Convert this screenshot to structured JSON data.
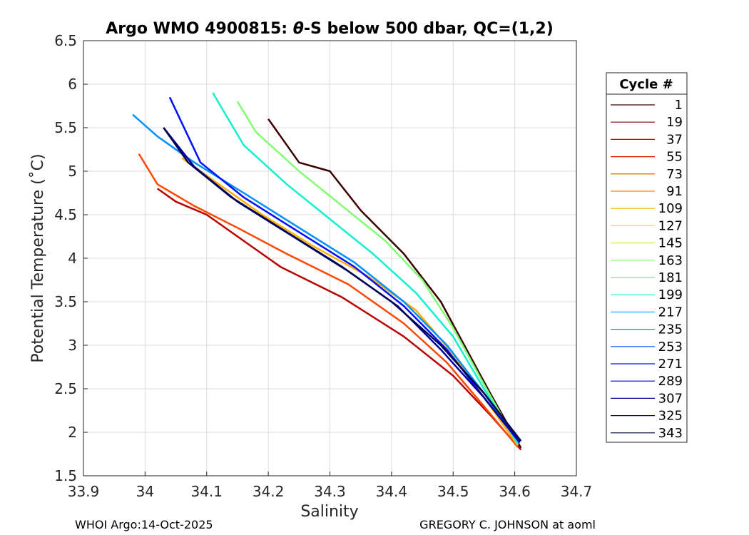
{
  "chart_data": {
    "type": "line",
    "title_prefix": "Argo WMO 4900815: ",
    "title_symbol": "θ",
    "title_suffix": "-S below 500 dbar,  QC=(1,2)",
    "xlabel": "Salinity",
    "ylabel": "Potential Temperature (˚C)",
    "xlim": [
      33.9,
      34.7
    ],
    "ylim": [
      1.5,
      6.5
    ],
    "xticks": [
      "33.9",
      "34",
      "34.1",
      "34.2",
      "34.3",
      "34.4",
      "34.5",
      "34.6",
      "34.7"
    ],
    "yticks": [
      "1.5",
      "2",
      "2.5",
      "3",
      "3.5",
      "4",
      "4.5",
      "5",
      "5.5",
      "6",
      "6.5"
    ],
    "grid": true,
    "legend": {
      "title": "Cycle #",
      "position": "right",
      "entries": [
        "1",
        "19",
        "37",
        "55",
        "73",
        "91",
        "109",
        "127",
        "145",
        "163",
        "181",
        "199",
        "217",
        "235",
        "253",
        "271",
        "289",
        "307",
        "325",
        "343"
      ],
      "colors": [
        "#3a0000",
        "#7a0000",
        "#b80000",
        "#e81000",
        "#ff4800",
        "#ff8000",
        "#ffb000",
        "#ffe800",
        "#c8ff30",
        "#80ff70",
        "#40ffa0",
        "#10f0d0",
        "#00c8ff",
        "#0090ff",
        "#0050ff",
        "#0010ff",
        "#0000d8",
        "#0000a0",
        "#000070",
        "#000050"
      ]
    },
    "series": [
      {
        "name": "1",
        "color": "#3a0000",
        "x": [
          34.61,
          34.56,
          34.48,
          34.42,
          34.35,
          34.3,
          34.25,
          34.22,
          34.2
        ],
        "y": [
          1.82,
          2.45,
          3.5,
          4.05,
          4.55,
          5.0,
          5.1,
          5.4,
          5.6
        ]
      },
      {
        "name": "37",
        "color": "#b80000",
        "x": [
          34.61,
          34.56,
          34.5,
          34.42,
          34.32,
          34.22,
          34.16,
          34.1,
          34.05,
          34.02
        ],
        "y": [
          1.8,
          2.2,
          2.65,
          3.1,
          3.55,
          3.9,
          4.2,
          4.5,
          4.65,
          4.8
        ]
      },
      {
        "name": "73",
        "color": "#ff4800",
        "x": [
          34.605,
          34.55,
          34.49,
          34.42,
          34.33,
          34.23,
          34.15,
          34.08,
          34.02,
          33.99
        ],
        "y": [
          1.83,
          2.3,
          2.8,
          3.25,
          3.7,
          4.05,
          4.35,
          4.6,
          4.85,
          5.2
        ]
      },
      {
        "name": "109",
        "color": "#ffb000",
        "x": [
          34.605,
          34.555,
          34.5,
          34.44,
          34.36,
          34.27,
          34.19,
          34.12,
          34.06
        ],
        "y": [
          1.85,
          2.35,
          2.9,
          3.4,
          3.8,
          4.15,
          4.5,
          4.85,
          5.15
        ]
      },
      {
        "name": "163",
        "color": "#80ff70",
        "x": [
          34.605,
          34.55,
          34.5,
          34.45,
          34.39,
          34.32,
          34.25,
          34.18,
          34.15
        ],
        "y": [
          1.86,
          2.55,
          3.2,
          3.75,
          4.2,
          4.6,
          5.0,
          5.45,
          5.8
        ]
      },
      {
        "name": "199",
        "color": "#10f0d0",
        "x": [
          34.605,
          34.55,
          34.5,
          34.44,
          34.37,
          34.3,
          34.23,
          34.16,
          34.11
        ],
        "y": [
          1.87,
          2.5,
          3.1,
          3.6,
          4.05,
          4.45,
          4.85,
          5.3,
          5.9
        ]
      },
      {
        "name": "235",
        "color": "#0090ff",
        "x": [
          34.608,
          34.55,
          34.49,
          34.42,
          34.34,
          34.25,
          34.16,
          34.08,
          34.02,
          33.98
        ],
        "y": [
          1.88,
          2.45,
          3.0,
          3.5,
          3.95,
          4.35,
          4.75,
          5.1,
          5.4,
          5.65
        ]
      },
      {
        "name": "271",
        "color": "#0010ff",
        "x": [
          34.608,
          34.55,
          34.49,
          34.42,
          34.34,
          34.25,
          34.16,
          34.09,
          34.04
        ],
        "y": [
          1.88,
          2.4,
          2.95,
          3.45,
          3.9,
          4.3,
          4.7,
          5.1,
          5.85
        ]
      },
      {
        "name": "307",
        "color": "#0000a0",
        "x": [
          34.608,
          34.55,
          34.48,
          34.41,
          34.33,
          34.24,
          34.15,
          34.08,
          34.03
        ],
        "y": [
          1.89,
          2.4,
          2.95,
          3.45,
          3.85,
          4.25,
          4.65,
          5.05,
          5.5
        ]
      },
      {
        "name": "343",
        "color": "#000050",
        "x": [
          34.61,
          34.55,
          34.48,
          34.4,
          34.32,
          34.23,
          34.14,
          34.07,
          34.03
        ],
        "y": [
          1.9,
          2.45,
          3.0,
          3.5,
          3.9,
          4.3,
          4.7,
          5.1,
          5.5
        ]
      }
    ]
  },
  "footer": {
    "left": "WHOI Argo:14-Oct-2025",
    "right": "GREGORY C. JOHNSON at aoml"
  }
}
